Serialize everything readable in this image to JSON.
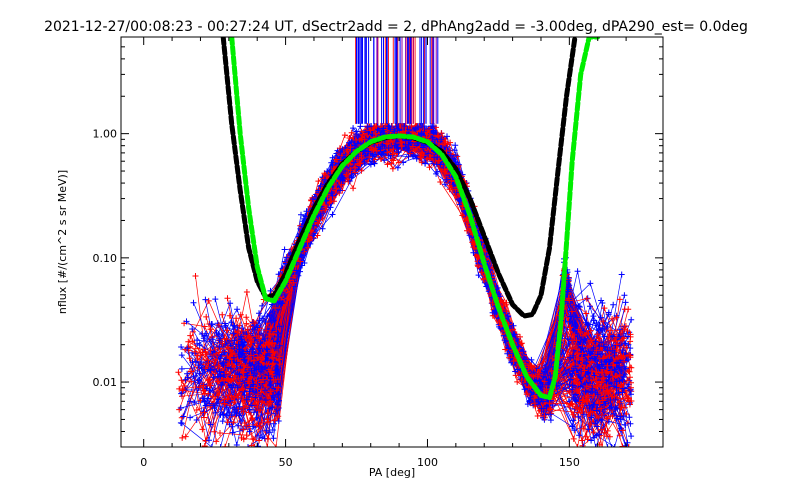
{
  "chart_data": {
    "type": "line",
    "title": "2021-12-27/00:08:23 - 00:27:24 UT, dSectr2add = 2, dPhAng2add = -3.00deg, dPA290_est=   0.0deg",
    "xlabel": "PA [deg]",
    "ylabel": "nflux [#/(cm^2 s sr MeV)]",
    "xlim": [
      -8,
      183
    ],
    "ylim": [
      0.003,
      6.0
    ],
    "yscale": "log",
    "grid": false,
    "x_ticks": [
      {
        "value": 0,
        "label": "0"
      },
      {
        "value": 50,
        "label": "50"
      },
      {
        "value": 100,
        "label": "100"
      },
      {
        "value": 150,
        "label": "150"
      }
    ],
    "y_ticks": [
      {
        "value": 0.01,
        "label": "0.01"
      },
      {
        "value": 0.1,
        "label": "0.10"
      },
      {
        "value": 1.0,
        "label": "1.00"
      }
    ],
    "series": [
      {
        "color": "#000000",
        "style": "dashed",
        "width": 5,
        "x": [
          28,
          31,
          34,
          37,
          40,
          43,
          46,
          50,
          55,
          60,
          65,
          70,
          75,
          80,
          85,
          90,
          95,
          100,
          105,
          110,
          115,
          120,
          125,
          130,
          134,
          137,
          140,
          143,
          146,
          149,
          152
        ],
        "y": [
          6.0,
          1.2,
          0.35,
          0.12,
          0.065,
          0.048,
          0.05,
          0.075,
          0.14,
          0.25,
          0.4,
          0.57,
          0.72,
          0.85,
          0.93,
          0.96,
          0.93,
          0.85,
          0.72,
          0.52,
          0.3,
          0.15,
          0.075,
          0.042,
          0.034,
          0.035,
          0.05,
          0.12,
          0.5,
          2.0,
          6.0
        ]
      },
      {
        "color": "#00ee00",
        "style": "dashed",
        "width": 5,
        "x": [
          31,
          34,
          37,
          40,
          43,
          46,
          50,
          55,
          60,
          65,
          70,
          75,
          80,
          85,
          90,
          95,
          100,
          105,
          110,
          115,
          120,
          125,
          130,
          135,
          140,
          143,
          145,
          147,
          149,
          151,
          154,
          157,
          160
        ],
        "y": [
          6.0,
          1.0,
          0.25,
          0.085,
          0.047,
          0.045,
          0.065,
          0.12,
          0.22,
          0.37,
          0.55,
          0.72,
          0.86,
          0.94,
          0.96,
          0.94,
          0.86,
          0.68,
          0.45,
          0.22,
          0.09,
          0.04,
          0.02,
          0.011,
          0.0078,
          0.0075,
          0.011,
          0.03,
          0.13,
          0.6,
          3.0,
          6.0,
          6.0
        ]
      }
    ],
    "noise_lines": {
      "red_count": 110,
      "blue_count": 110,
      "red": "#ff0000",
      "blue": "#0000ff"
    },
    "vertical_markers": {
      "x_range": [
        74,
        104
      ],
      "count": 60,
      "y_from": 1.2
    }
  }
}
